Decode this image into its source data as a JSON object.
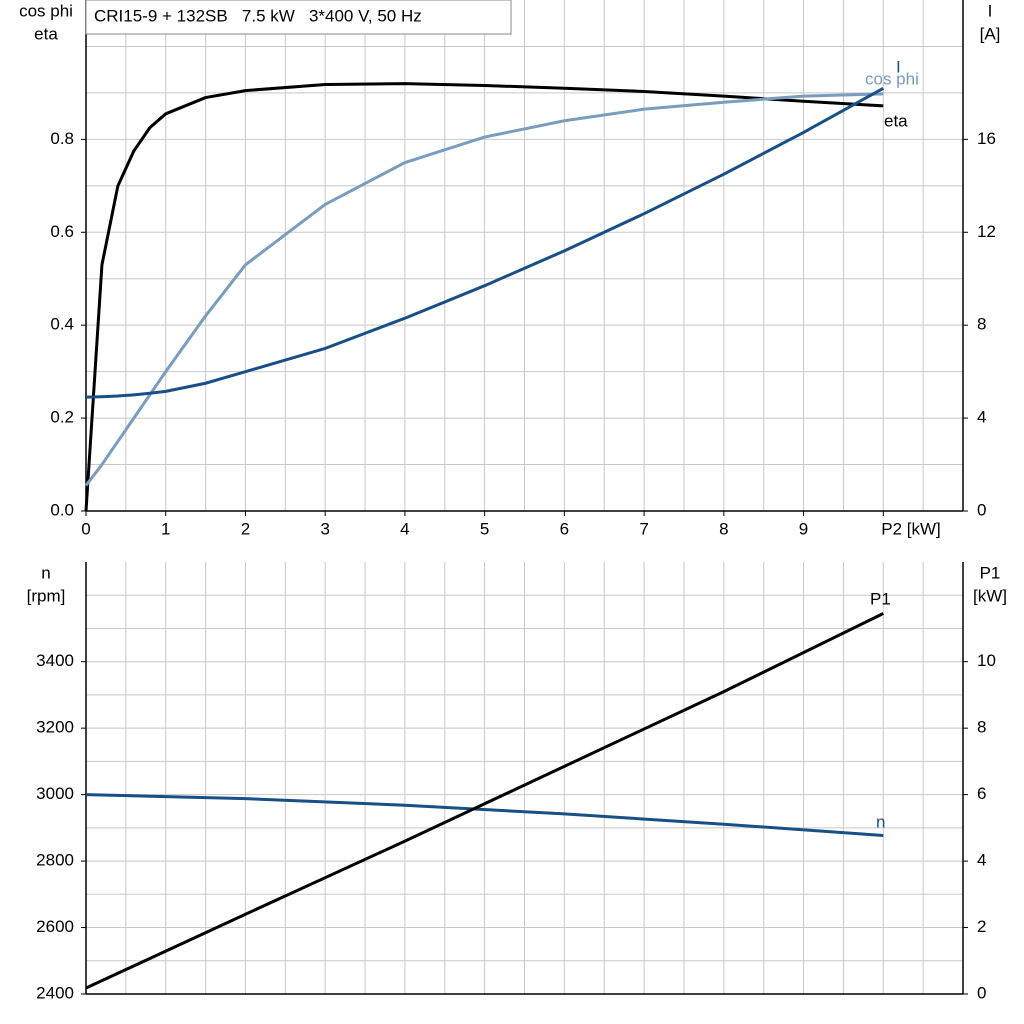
{
  "chart_data": [
    {
      "type": "line",
      "title": "CRI15-9 + 132SB   7.5 kW   3*400 V, 50 Hz",
      "ylabel": [
        "cos phi",
        "eta"
      ],
      "y2label": [
        "I",
        "[A]"
      ],
      "x": [
        0,
        0.2,
        0.4,
        0.6,
        0.8,
        1,
        1.5,
        2,
        3,
        4,
        5,
        6,
        7,
        8,
        9,
        10
      ],
      "xlim": [
        0,
        11
      ],
      "xticks": [
        0,
        1,
        2,
        3,
        4,
        5,
        6,
        7,
        8,
        9,
        {
          "value": 10,
          "label": "P2 [kW]"
        }
      ],
      "ylim": [
        0,
        1.1
      ],
      "yticks": [
        {
          "value": 0,
          "label": "0.0"
        },
        0.2,
        0.4,
        0.6,
        0.8
      ],
      "y2lim": [
        0,
        22
      ],
      "y2ticks": [
        0,
        4,
        8,
        12,
        16
      ],
      "grid": true,
      "series": [
        {
          "name": "eta",
          "color": "#000000",
          "values": [
            0,
            0.53,
            0.7,
            0.775,
            0.825,
            0.855,
            0.89,
            0.905,
            0.918,
            0.92,
            0.916,
            0.91,
            0.903,
            0.893,
            0.882,
            0.872
          ]
        },
        {
          "name": "cos phi",
          "color": "#7a9cbd",
          "values": [
            0.055,
            0.1,
            0.15,
            0.2,
            0.25,
            0.3,
            0.42,
            0.53,
            0.66,
            0.75,
            0.805,
            0.84,
            0.865,
            0.88,
            0.893,
            0.898
          ]
        },
        {
          "name": "I",
          "color": "#174f86",
          "axis": "y2",
          "values": [
            4.9,
            4.92,
            4.95,
            5.0,
            5.07,
            5.15,
            5.5,
            6.0,
            7.0,
            8.3,
            9.7,
            11.2,
            12.8,
            14.5,
            16.3,
            18.2
          ]
        }
      ]
    },
    {
      "type": "line",
      "ylabel": [
        "n",
        "[rpm]"
      ],
      "y2label": [
        "P1",
        "[kW]"
      ],
      "x": [
        0,
        2,
        4,
        6,
        8,
        10
      ],
      "xlim": [
        0,
        11
      ],
      "ylim": [
        2400,
        3700
      ],
      "yticks": [
        2400,
        2600,
        2800,
        3000,
        3200,
        3400
      ],
      "y2lim": [
        0,
        13
      ],
      "y2ticks": [
        0,
        2,
        4,
        6,
        8,
        10
      ],
      "grid": true,
      "series": [
        {
          "name": "n",
          "color": "#174f86",
          "values": [
            3000,
            2988,
            2968,
            2942,
            2911,
            2877
          ]
        },
        {
          "name": "P1",
          "color": "#000000",
          "axis": "y2",
          "values": [
            0.18,
            2.4,
            4.6,
            6.85,
            9.1,
            11.45
          ]
        }
      ]
    }
  ]
}
